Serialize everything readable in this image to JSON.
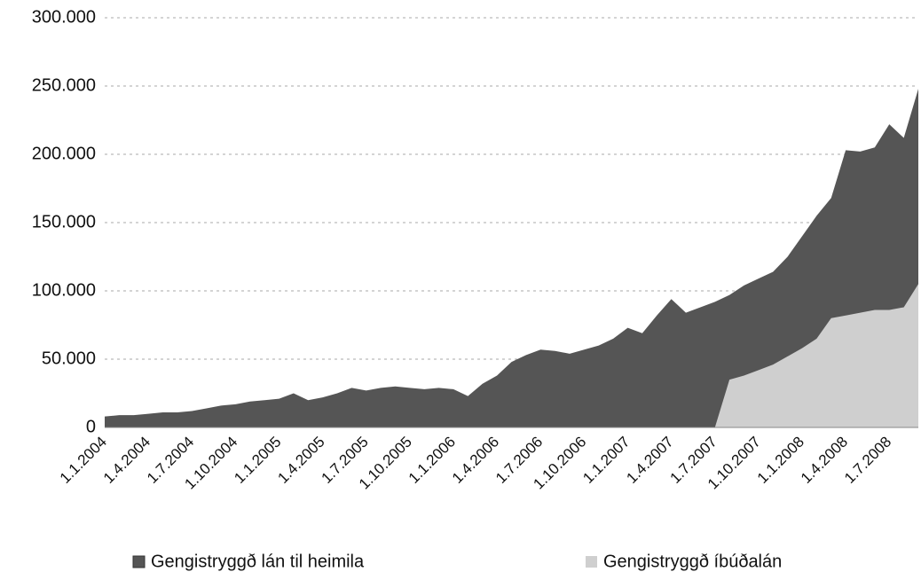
{
  "chart_data": {
    "type": "area",
    "categories": [
      "1.1.2004",
      null,
      null,
      "1.4.2004",
      null,
      null,
      "1.7.2004",
      null,
      null,
      "1.10.2004",
      null,
      null,
      "1.1.2005",
      null,
      null,
      "1.4.2005",
      null,
      null,
      "1.7.2005",
      null,
      null,
      "1.10.2005",
      null,
      null,
      "1.1.2006",
      null,
      null,
      "1.4.2006",
      null,
      null,
      "1.7.2006",
      null,
      null,
      "1.10.2006",
      null,
      null,
      "1.1.2007",
      null,
      null,
      "1.4.2007",
      null,
      null,
      "1.7.2007",
      null,
      null,
      "1.10.2007",
      null,
      null,
      "1.1.2008",
      null,
      null,
      "1.4.2008",
      null,
      null,
      "1.7.2008",
      null,
      null
    ],
    "series": [
      {
        "name": "Gengistryggð lán til heimila",
        "color": "#555555",
        "values": [
          8000,
          9000,
          9000,
          10000,
          11000,
          11000,
          12000,
          14000,
          16000,
          17000,
          19000,
          20000,
          21000,
          25000,
          20000,
          22000,
          25000,
          29000,
          27000,
          29000,
          30000,
          29000,
          28000,
          29000,
          28000,
          23000,
          32000,
          38000,
          48000,
          53000,
          57000,
          56000,
          54000,
          57000,
          60000,
          65000,
          73000,
          69000,
          82000,
          94000,
          84000,
          88000,
          92000,
          97000,
          104000,
          109000,
          114000,
          125000,
          140000,
          155000,
          168000,
          203000,
          202000,
          205000,
          222000,
          212000,
          248000
        ]
      },
      {
        "name": "Gengistryggð íbúðalán",
        "color": "#cfcfcf",
        "values": [
          0,
          0,
          0,
          0,
          0,
          0,
          0,
          0,
          0,
          0,
          0,
          0,
          0,
          0,
          0,
          0,
          0,
          0,
          0,
          0,
          0,
          0,
          0,
          0,
          0,
          0,
          0,
          0,
          0,
          0,
          0,
          0,
          0,
          0,
          0,
          0,
          0,
          0,
          0,
          0,
          0,
          0,
          0,
          35000,
          38000,
          42000,
          46000,
          52000,
          58000,
          65000,
          80000,
          82000,
          84000,
          86000,
          86000,
          88000,
          105000
        ]
      }
    ],
    "ylim": [
      0,
      300000
    ],
    "yticks": [
      0,
      {
        "value": 50000,
        "label": "50.000"
      },
      {
        "value": 100000,
        "label": "100.000"
      },
      {
        "value": 150000,
        "label": "150.000"
      },
      {
        "value": 200000,
        "label": "200.000"
      },
      {
        "value": 250000,
        "label": "250.000"
      },
      {
        "value": 300000,
        "label": "300.000"
      }
    ],
    "grid": true,
    "legend": "bottom"
  }
}
